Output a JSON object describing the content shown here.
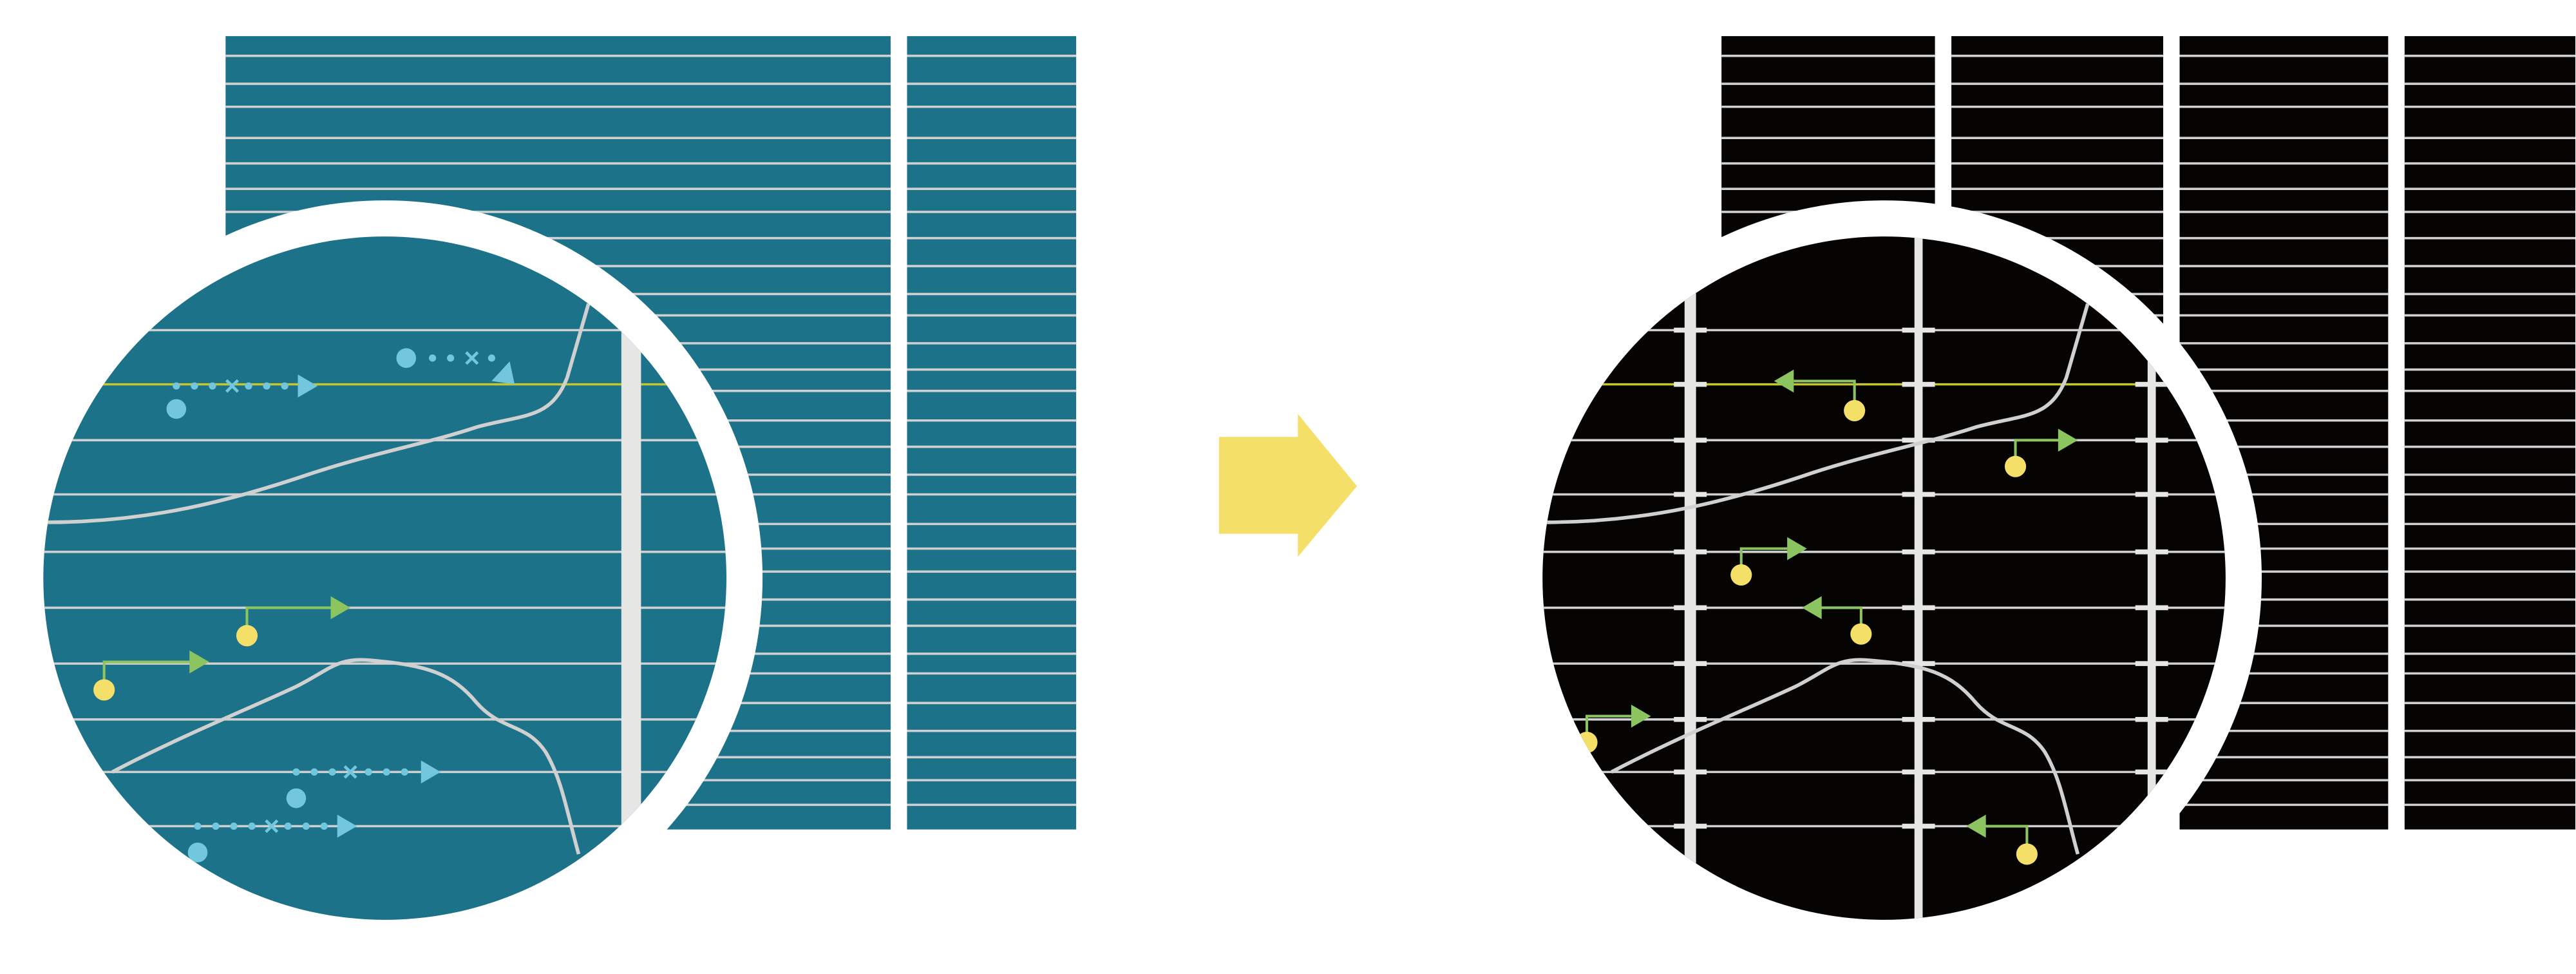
{
  "colors": {
    "before_background": "#1b7289",
    "after_background": "#060303",
    "grid_line": "#d0d0d0",
    "vertical_bar": "#e6e6e5",
    "highlight_line": "#c5c62b",
    "blue_marker": "#72c6dd",
    "green_arrow": "#8cc460",
    "yellow_dot": "#f4df68",
    "transition_arrow": "#f4df68"
  },
  "icons": {
    "transition": "right-arrow-icon"
  }
}
